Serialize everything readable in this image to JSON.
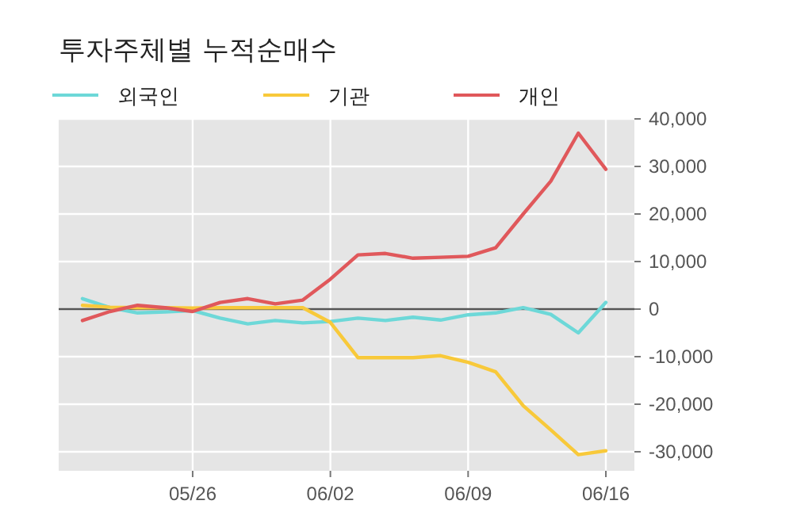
{
  "chart_data": {
    "type": "line",
    "title": "투자주체별 누적순매수",
    "categories": [
      null,
      null,
      null,
      null,
      "05/26",
      null,
      null,
      null,
      null,
      "06/02",
      null,
      null,
      null,
      null,
      "06/09",
      null,
      null,
      null,
      null,
      "06/16"
    ],
    "series": [
      {
        "name": "외국인",
        "color": "#6dd8d8",
        "values": [
          2200,
          300,
          -800,
          -600,
          -300,
          -1900,
          -3100,
          -2400,
          -2900,
          -2600,
          -1900,
          -2400,
          -1700,
          -2300,
          -1200,
          -800,
          300,
          -1100,
          -5000,
          1400
        ]
      },
      {
        "name": "기관",
        "color": "#f8c93a",
        "values": [
          800,
          400,
          300,
          300,
          200,
          300,
          300,
          300,
          300,
          -2800,
          -10200,
          -10200,
          -10200,
          -9800,
          -11200,
          -13200,
          -20300,
          -25400,
          -30600,
          -29800
        ]
      },
      {
        "name": "개인",
        "color": "#e0585b",
        "values": [
          -2400,
          -500,
          800,
          300,
          -500,
          1400,
          2200,
          1100,
          1900,
          6300,
          11400,
          11700,
          10700,
          10900,
          11100,
          12900,
          20000,
          26900,
          37000,
          29400
        ]
      }
    ],
    "ylim": [
      -34000,
      40000
    ],
    "yticks": [
      {
        "value": 40000,
        "label": "40,000"
      },
      {
        "value": 30000,
        "label": "30,000"
      },
      {
        "value": 20000,
        "label": "20,000"
      },
      {
        "value": 10000,
        "label": "10,000"
      },
      0,
      {
        "value": -10000,
        "label": "-10,000"
      },
      {
        "value": -20000,
        "label": "-20,000"
      },
      {
        "value": -30000,
        "label": "-30,000"
      }
    ],
    "ref_lines": [
      {
        "axis": "y",
        "value": 0,
        "color": "#555555"
      }
    ],
    "grid": true,
    "legend": "top left",
    "marker": "none",
    "line_style": "solid"
  }
}
